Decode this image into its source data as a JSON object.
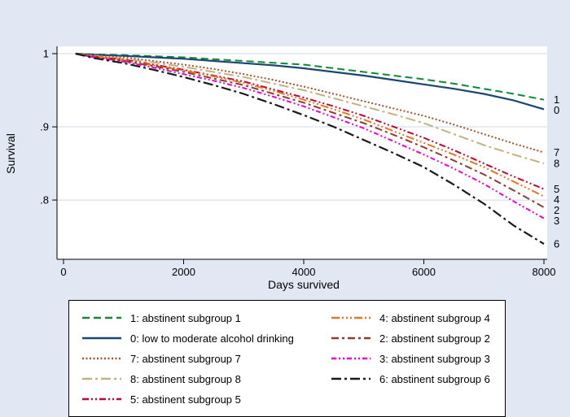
{
  "figure": {
    "background": "#e2e8f3",
    "plot_background": "#ffffff",
    "grid_color": "#ccd9eb",
    "axis_color": "#000000",
    "text_color": "#000000"
  },
  "chart_data": {
    "type": "line",
    "xlabel": "Days survived",
    "ylabel": "Survival",
    "xlim": [
      0,
      8000
    ],
    "ylim": [
      0.719,
      1.0
    ],
    "grid": "horizontal",
    "legend_position": "bottom",
    "xticks": [
      0,
      2000,
      4000,
      6000,
      8000
    ],
    "yticks": [
      {
        "value": 1.0,
        "label": "1"
      },
      {
        "value": 0.9,
        "label": ".9"
      },
      {
        "value": 0.8,
        "label": ".8"
      }
    ],
    "x": [
      200,
      500,
      1000,
      1500,
      2000,
      2500,
      3000,
      3500,
      4000,
      4500,
      5000,
      5500,
      6000,
      6500,
      7000,
      7500,
      8000
    ],
    "series": [
      {
        "name": "1: abstinent subgroup 1",
        "end_label": "1",
        "color": "#0e8a32",
        "dash": "9,5",
        "width": 2,
        "values": [
          1.0,
          0.999,
          0.998,
          0.9965,
          0.995,
          0.9925,
          0.99,
          0.9875,
          0.985,
          0.98,
          0.975,
          0.97,
          0.965,
          0.959,
          0.952,
          0.945,
          0.937
        ]
      },
      {
        "name": "0: low to moderate alcohol drinking",
        "end_label": "0",
        "color": "#1a476f",
        "dash": "",
        "width": 2.2,
        "values": [
          1.0,
          0.9985,
          0.997,
          0.995,
          0.993,
          0.99,
          0.987,
          0.984,
          0.98,
          0.975,
          0.97,
          0.964,
          0.958,
          0.952,
          0.945,
          0.936,
          0.924
        ]
      },
      {
        "name": "7: abstinent subgroup 7",
        "end_label": "7",
        "color": "#a0522d",
        "dash": "2,2.5",
        "width": 2,
        "values": [
          1.0,
          0.998,
          0.995,
          0.99,
          0.985,
          0.979,
          0.972,
          0.964,
          0.955,
          0.945,
          0.935,
          0.925,
          0.915,
          0.903,
          0.89,
          0.877,
          0.865
        ]
      },
      {
        "name": "8: abstinent subgroup 8",
        "end_label": "8",
        "color": "#c2b280",
        "dash": "12,4,3,4",
        "width": 2,
        "values": [
          1.0,
          0.997,
          0.993,
          0.988,
          0.982,
          0.975,
          0.968,
          0.959,
          0.95,
          0.939,
          0.928,
          0.917,
          0.905,
          0.89,
          0.875,
          0.862,
          0.85
        ]
      },
      {
        "name": "5: abstinent subgroup 5",
        "end_label": "5",
        "color": "#c10534",
        "dash": "8,3,2,3,2,3",
        "width": 2,
        "values": [
          1.0,
          0.996,
          0.992,
          0.985,
          0.978,
          0.97,
          0.962,
          0.951,
          0.94,
          0.928,
          0.915,
          0.9,
          0.885,
          0.868,
          0.85,
          0.832,
          0.815
        ]
      },
      {
        "name": "4: abstinent subgroup 4",
        "end_label": "4",
        "color": "#e8751a",
        "dash": "10,3,2,3,2,3,2,3",
        "width": 2,
        "values": [
          1.0,
          0.996,
          0.991,
          0.984,
          0.977,
          0.969,
          0.96,
          0.949,
          0.937,
          0.924,
          0.91,
          0.894,
          0.878,
          0.862,
          0.845,
          0.825,
          0.805
        ]
      },
      {
        "name": "2: abstinent subgroup 2",
        "end_label": "2",
        "color": "#8f3a30",
        "dash": "9,4,3,4",
        "width": 2,
        "values": [
          1.0,
          0.995,
          0.99,
          0.983,
          0.975,
          0.966,
          0.957,
          0.945,
          0.933,
          0.919,
          0.905,
          0.889,
          0.872,
          0.854,
          0.835,
          0.813,
          0.79
        ]
      },
      {
        "name": "3: abstinent subgroup 3",
        "end_label": "3",
        "color": "#f000c8",
        "dash": "6,3,2,3,2,3",
        "width": 2,
        "values": [
          1.0,
          0.995,
          0.989,
          0.981,
          0.972,
          0.963,
          0.953,
          0.941,
          0.928,
          0.913,
          0.898,
          0.88,
          0.862,
          0.843,
          0.822,
          0.798,
          0.775
        ]
      },
      {
        "name": "6: abstinent subgroup 6",
        "end_label": "6",
        "color": "#1a1a1a",
        "dash": "12,4,3,4",
        "width": 2.2,
        "values": [
          1.0,
          0.994,
          0.987,
          0.978,
          0.968,
          0.957,
          0.945,
          0.931,
          0.916,
          0.9,
          0.882,
          0.864,
          0.845,
          0.821,
          0.795,
          0.765,
          0.74
        ]
      }
    ]
  },
  "legend": {
    "columns": [
      [
        0,
        1,
        2,
        3,
        4
      ],
      [
        5,
        6,
        7,
        8
      ]
    ]
  }
}
